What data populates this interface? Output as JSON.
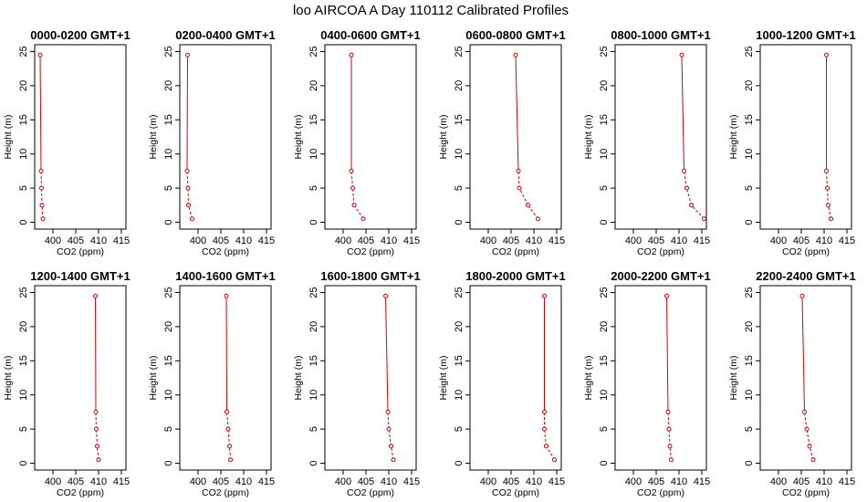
{
  "figure": {
    "title": "loo AIRCOA A  Day 110112  Calibrated Profiles"
  },
  "style": {
    "series_color": "#dd0000",
    "axis_color": "#000000"
  },
  "chart_data": [
    {
      "type": "line",
      "title": "0000-0200 GMT+1",
      "xlabel": "CO2 (ppm)",
      "ylabel": "Height (m)",
      "xlim": [
        396,
        416
      ],
      "ylim": [
        -1,
        26
      ],
      "xticks": [
        400,
        405,
        410,
        415
      ],
      "yticks": [
        0,
        5,
        10,
        15,
        20,
        25
      ],
      "x": [
        397.8,
        397.6,
        397.5,
        397.4,
        397.2
      ],
      "y": [
        0.5,
        2.5,
        5,
        7.5,
        24.5
      ]
    },
    {
      "type": "line",
      "title": "0200-0400 GMT+1",
      "xlabel": "CO2 (ppm)",
      "ylabel": "Height (m)",
      "xlim": [
        396,
        416
      ],
      "ylim": [
        -1,
        26
      ],
      "xticks": [
        400,
        405,
        410,
        415
      ],
      "yticks": [
        0,
        5,
        10,
        15,
        20,
        25
      ],
      "x": [
        398.7,
        397.9,
        397.8,
        397.6,
        397.7
      ],
      "y": [
        0.5,
        2.5,
        5,
        7.5,
        24.5
      ]
    },
    {
      "type": "line",
      "title": "0400-0600 GMT+1",
      "xlabel": "CO2 (ppm)",
      "ylabel": "Height (m)",
      "xlim": [
        396,
        416
      ],
      "ylim": [
        -1,
        26
      ],
      "xticks": [
        400,
        405,
        410,
        415
      ],
      "yticks": [
        0,
        5,
        10,
        15,
        20,
        25
      ],
      "x": [
        404.4,
        402.4,
        402.1,
        401.8,
        401.8
      ],
      "y": [
        0.5,
        2.5,
        5,
        7.5,
        24.5
      ]
    },
    {
      "type": "line",
      "title": "0600-0800 GMT+1",
      "xlabel": "CO2 (ppm)",
      "ylabel": "Height (m)",
      "xlim": [
        396,
        416
      ],
      "ylim": [
        -1,
        26
      ],
      "xticks": [
        400,
        405,
        410,
        415
      ],
      "yticks": [
        0,
        5,
        10,
        15,
        20,
        25
      ],
      "x": [
        410.9,
        408.7,
        406.8,
        406.6,
        406.0
      ],
      "y": [
        0.5,
        2.5,
        5,
        7.5,
        24.5
      ]
    },
    {
      "type": "line",
      "title": "0800-1000 GMT+1",
      "xlabel": "CO2 (ppm)",
      "ylabel": "Height (m)",
      "xlim": [
        396,
        416
      ],
      "ylim": [
        -1,
        26
      ],
      "xticks": [
        400,
        405,
        410,
        415
      ],
      "yticks": [
        0,
        5,
        10,
        15,
        20,
        25
      ],
      "x": [
        415.5,
        412.7,
        411.7,
        411.1,
        410.6
      ],
      "y": [
        0.5,
        2.5,
        5,
        7.5,
        24.5
      ]
    },
    {
      "type": "line",
      "title": "1000-1200 GMT+1",
      "xlabel": "CO2 (ppm)",
      "ylabel": "Height (m)",
      "xlim": [
        396,
        416
      ],
      "ylim": [
        -1,
        26
      ],
      "xticks": [
        400,
        405,
        410,
        415
      ],
      "yticks": [
        0,
        5,
        10,
        15,
        20,
        25
      ],
      "x": [
        411.5,
        410.9,
        410.7,
        410.5,
        410.5
      ],
      "y": [
        0.5,
        2.5,
        5,
        7.5,
        24.5
      ]
    },
    {
      "type": "line",
      "title": "1200-1400 GMT+1",
      "xlabel": "CO2 (ppm)",
      "ylabel": "Height (m)",
      "xlim": [
        396,
        416
      ],
      "ylim": [
        -1,
        26
      ],
      "xticks": [
        400,
        405,
        410,
        415
      ],
      "yticks": [
        0,
        5,
        10,
        15,
        20,
        25
      ],
      "x": [
        410.0,
        409.7,
        409.5,
        409.4,
        409.3
      ],
      "y": [
        0.5,
        2.5,
        5,
        7.5,
        24.5
      ]
    },
    {
      "type": "line",
      "title": "1400-1600 GMT+1",
      "xlabel": "CO2 (ppm)",
      "ylabel": "Height (m)",
      "xlim": [
        396,
        416
      ],
      "ylim": [
        -1,
        26
      ],
      "xticks": [
        400,
        405,
        410,
        415
      ],
      "yticks": [
        0,
        5,
        10,
        15,
        20,
        25
      ],
      "x": [
        407.1,
        406.9,
        406.6,
        406.3,
        406.2
      ],
      "y": [
        0.5,
        2.5,
        5,
        7.5,
        24.5
      ]
    },
    {
      "type": "line",
      "title": "1600-1800 GMT+1",
      "xlabel": "CO2 (ppm)",
      "ylabel": "Height (m)",
      "xlim": [
        396,
        416
      ],
      "ylim": [
        -1,
        26
      ],
      "xticks": [
        400,
        405,
        410,
        415
      ],
      "yticks": [
        0,
        5,
        10,
        15,
        20,
        25
      ],
      "x": [
        411.0,
        410.5,
        410.0,
        409.8,
        409.3
      ],
      "y": [
        0.5,
        2.5,
        5,
        7.5,
        24.5
      ]
    },
    {
      "type": "line",
      "title": "1800-2000 GMT+1",
      "xlabel": "CO2 (ppm)",
      "ylabel": "Height (m)",
      "xlim": [
        396,
        416
      ],
      "ylim": [
        -1,
        26
      ],
      "xticks": [
        400,
        405,
        410,
        415
      ],
      "yticks": [
        0,
        5,
        10,
        15,
        20,
        25
      ],
      "x": [
        414.5,
        412.7,
        412.3,
        412.3,
        412.3
      ],
      "y": [
        0.5,
        2.5,
        5,
        7.5,
        24.5
      ]
    },
    {
      "type": "line",
      "title": "2000-2200 GMT+1",
      "xlabel": "CO2 (ppm)",
      "ylabel": "Height (m)",
      "xlim": [
        396,
        416
      ],
      "ylim": [
        -1,
        26
      ],
      "xticks": [
        400,
        405,
        410,
        415
      ],
      "yticks": [
        0,
        5,
        10,
        15,
        20,
        25
      ],
      "x": [
        408.3,
        408.0,
        407.8,
        407.6,
        407.3
      ],
      "y": [
        0.5,
        2.5,
        5,
        7.5,
        24.5
      ]
    },
    {
      "type": "line",
      "title": "2200-2400 GMT+1",
      "xlabel": "CO2 (ppm)",
      "ylabel": "Height (m)",
      "xlim": [
        396,
        416
      ],
      "ylim": [
        -1,
        26
      ],
      "xticks": [
        400,
        405,
        410,
        415
      ],
      "yticks": [
        0,
        5,
        10,
        15,
        20,
        25
      ],
      "x": [
        407.6,
        406.8,
        406.2,
        405.7,
        405.2
      ],
      "y": [
        0.5,
        2.5,
        5,
        7.5,
        24.5
      ]
    }
  ]
}
